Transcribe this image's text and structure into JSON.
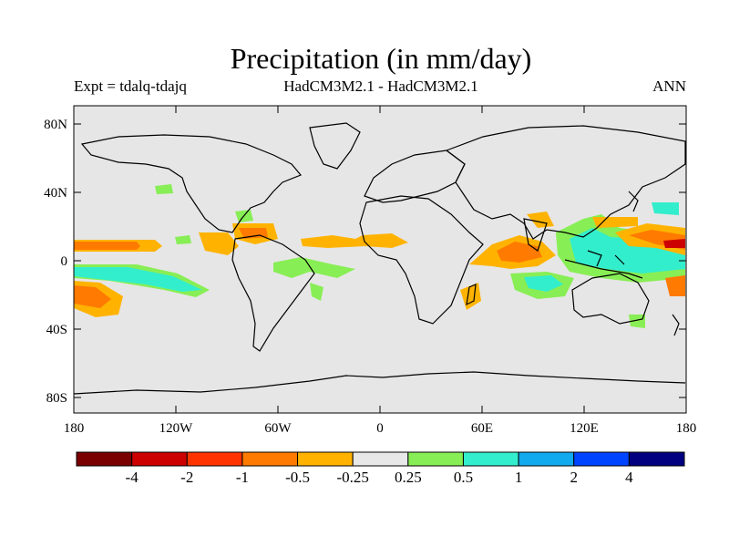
{
  "header": {
    "title": "Precipitation (in mm/day)",
    "left_label": "Expt = tdalq-tdajq",
    "center_label": "HadCM3M2.1 - HadCM3M2.1",
    "right_label": "ANN"
  },
  "map": {
    "lat_labels": [
      "80N",
      "40N",
      "0",
      "40S",
      "80S"
    ],
    "lon_labels": [
      "180",
      "120W",
      "60W",
      "0",
      "60E",
      "120E",
      "180"
    ]
  },
  "legend": {
    "ticks": [
      "-4",
      "-2",
      "-1",
      "-0.5",
      "-0.25",
      "0.25",
      "0.5",
      "1",
      "2",
      "4"
    ],
    "colors": [
      "#7a0000",
      "#cc0000",
      "#ff3300",
      "#ff7a00",
      "#ffb300",
      "#e8e8e8",
      "#88ee55",
      "#33eecc",
      "#11aaee",
      "#0044ff",
      "#000080"
    ]
  },
  "colors": {
    "ocean": "#e6e6e6",
    "coast": "#000000"
  }
}
